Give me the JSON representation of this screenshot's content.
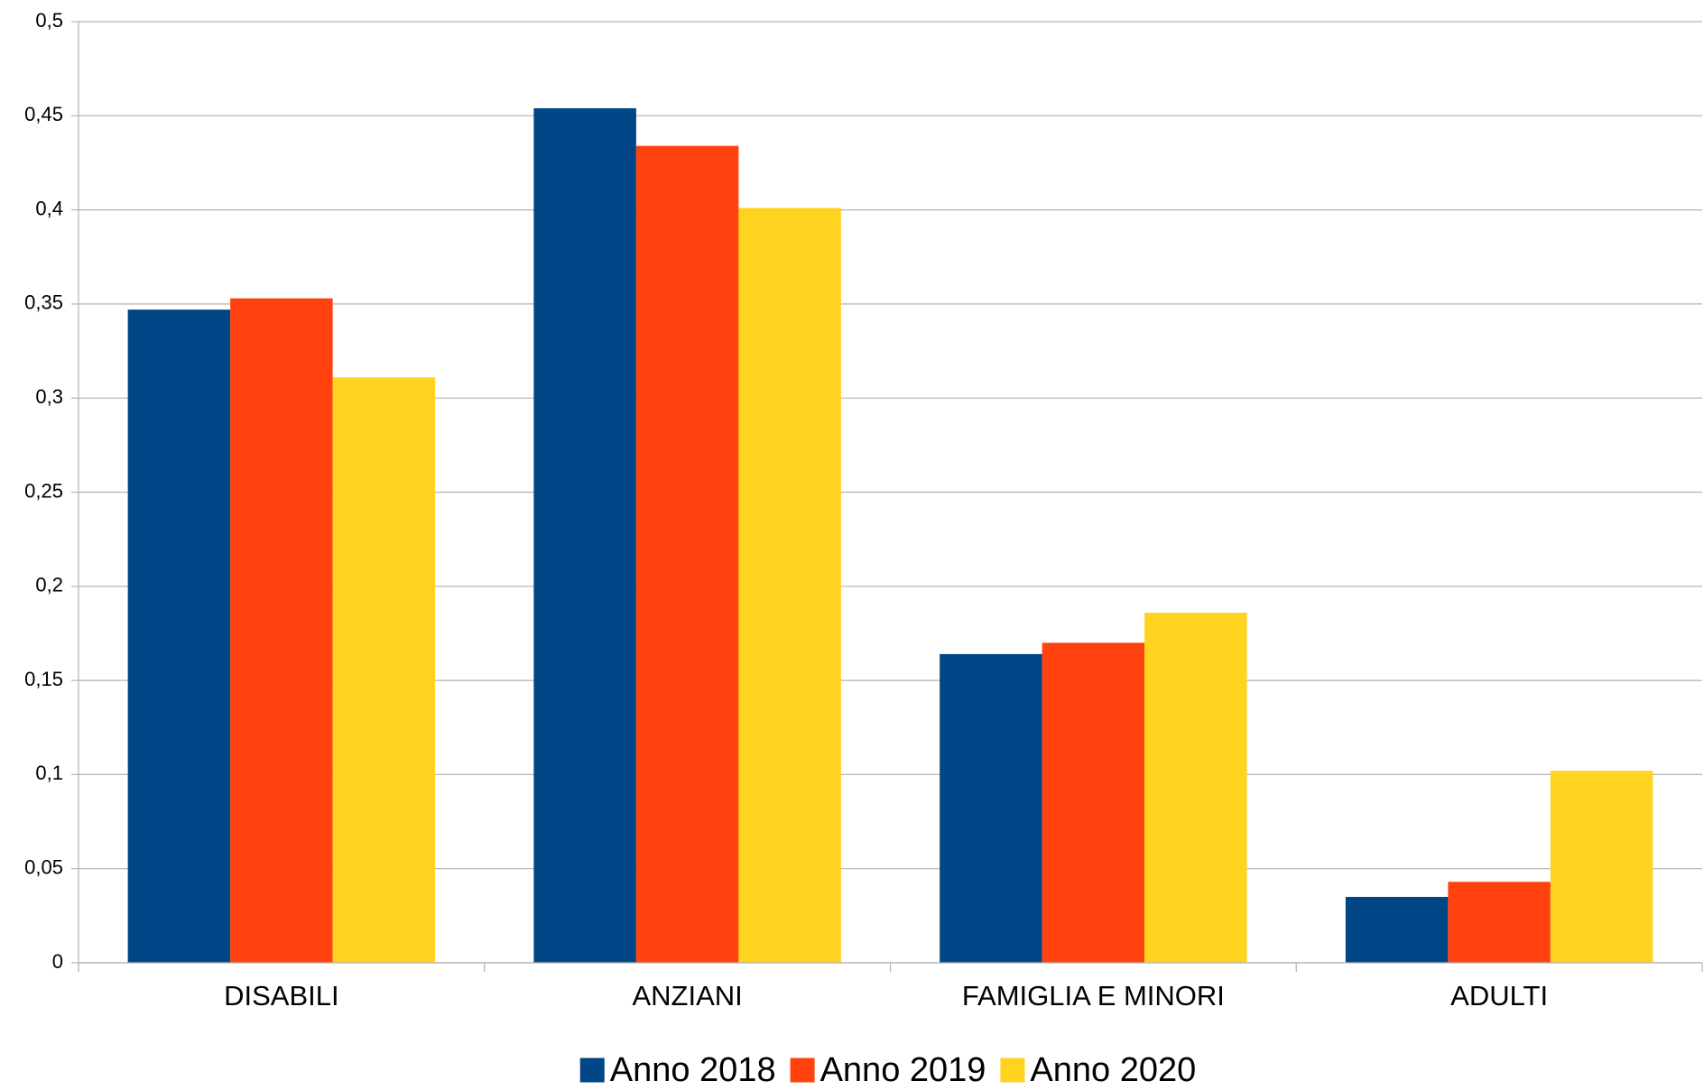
{
  "chart_data": {
    "type": "bar",
    "categories": [
      "DISABILI",
      "ANZIANI",
      "FAMIGLIA E MINORI",
      "ADULTI"
    ],
    "series": [
      {
        "name": "Anno 2018",
        "color": "#004586",
        "values": [
          0.347,
          0.454,
          0.164,
          0.035
        ]
      },
      {
        "name": "Anno 2019",
        "color": "#ff420e",
        "values": [
          0.353,
          0.434,
          0.17,
          0.043
        ]
      },
      {
        "name": "Anno 2020",
        "color": "#ffd320",
        "values": [
          0.311,
          0.401,
          0.186,
          0.102
        ]
      }
    ],
    "ylim": [
      0,
      0.5
    ],
    "yticks": [
      0,
      {
        "value": 0.05,
        "label": "0,05"
      },
      {
        "value": 0.1,
        "label": "0,1"
      },
      {
        "value": 0.15,
        "label": "0,15"
      },
      {
        "value": 0.2,
        "label": "0,2"
      },
      {
        "value": 0.25,
        "label": "0,25"
      },
      {
        "value": 0.3,
        "label": "0,3"
      },
      {
        "value": 0.35,
        "label": "0,35"
      },
      {
        "value": 0.4,
        "label": "0,4"
      },
      {
        "value": 0.45,
        "label": "0,45"
      },
      {
        "value": 0.5,
        "label": "0,5"
      }
    ],
    "grid": true,
    "legend": "bottom"
  }
}
